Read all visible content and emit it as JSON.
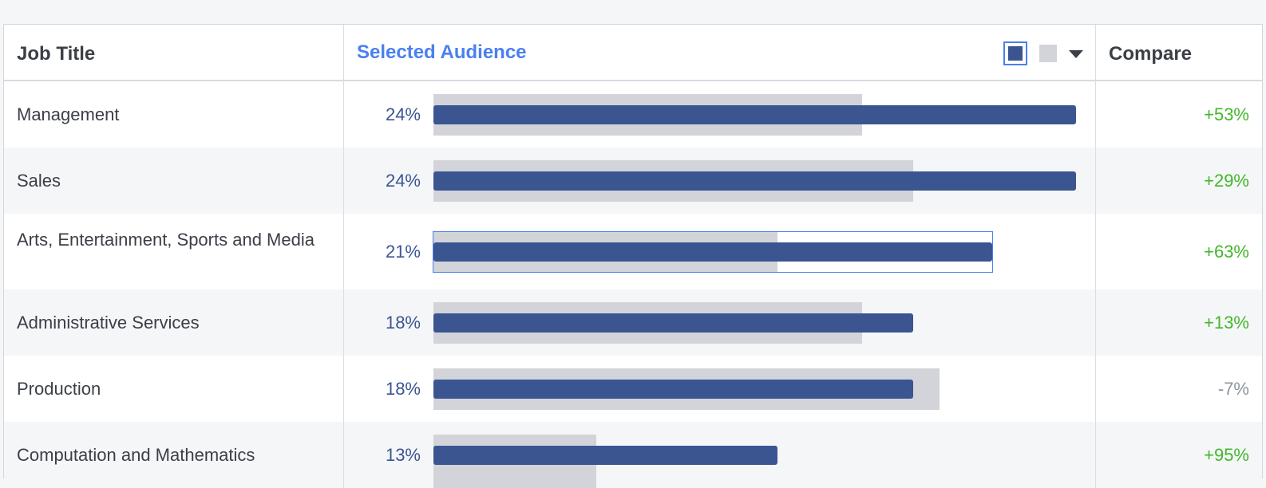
{
  "header": {
    "job_title": "Job Title",
    "selected_audience": "Selected Audience",
    "compare": "Compare"
  },
  "colors": {
    "accent": "#4a80f0",
    "bar_selected": "#3b5591",
    "bar_baseline": "#d2d4d9",
    "positive": "#42b72a",
    "negative": "#8d949e"
  },
  "rows": [
    {
      "job": "Management",
      "pct": "24%",
      "compare": "+53%",
      "selected_fraction": 1.0,
      "baseline_fraction": 0.667,
      "positive": true
    },
    {
      "job": "Sales",
      "pct": "24%",
      "compare": "+29%",
      "selected_fraction": 1.0,
      "baseline_fraction": 0.746,
      "positive": true
    },
    {
      "job": "Arts, Entertainment, Sports and Media",
      "pct": "21%",
      "compare": "+63%",
      "selected_fraction": 0.869,
      "baseline_fraction": 0.535,
      "positive": true,
      "focused": true
    },
    {
      "job": "Administrative Services",
      "pct": "18%",
      "compare": "+13%",
      "selected_fraction": 0.746,
      "baseline_fraction": 0.667,
      "positive": true
    },
    {
      "job": "Production",
      "pct": "18%",
      "compare": "-7%",
      "selected_fraction": 0.746,
      "baseline_fraction": 0.787,
      "positive": false
    },
    {
      "job": "Computation and Mathematics",
      "pct": "13%",
      "compare": "+95%",
      "selected_fraction": 0.535,
      "baseline_fraction": 0.253,
      "positive": true
    }
  ]
}
